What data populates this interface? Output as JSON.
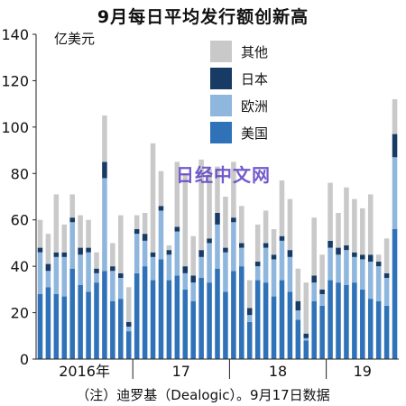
{
  "chart_data": {
    "type": "bar",
    "stacked": true,
    "title": "9月每日平均发行额创新高",
    "unit_label": "亿美元",
    "ylim": [
      0,
      140
    ],
    "yticks": [
      0,
      20,
      40,
      60,
      80,
      100,
      120,
      140
    ],
    "year_labels": [
      "2016年",
      "17",
      "18",
      "19"
    ],
    "grid": false,
    "legend_position": "top-right",
    "series": [
      {
        "name": "美国",
        "color": "#2f72b8",
        "values": [
          28,
          31,
          28,
          27,
          39,
          32,
          29,
          33,
          38,
          25,
          26,
          12,
          37,
          40,
          34,
          43,
          34,
          36,
          30,
          25,
          35,
          33,
          39,
          29,
          38,
          40,
          16,
          34,
          33,
          27,
          34,
          29,
          17,
          8,
          25,
          23,
          34,
          33,
          32,
          33,
          30,
          26,
          25,
          23,
          56
        ]
      },
      {
        "name": "欧洲",
        "color": "#8fb6dc",
        "values": [
          18,
          7,
          16,
          17,
          20,
          13,
          17,
          4,
          40,
          13,
          9,
          2,
          17,
          11,
          10,
          21,
          11,
          19,
          7,
          8,
          9,
          17,
          19,
          17,
          21,
          8,
          3,
          6,
          15,
          16,
          17,
          15,
          4,
          1,
          8,
          5,
          14,
          12,
          15,
          11,
          13,
          16,
          15,
          12,
          31
        ]
      },
      {
        "name": "日本",
        "color": "#183b66",
        "values": [
          2,
          3,
          2,
          2,
          2,
          3,
          2,
          2,
          7,
          2,
          2,
          2,
          2,
          3,
          2,
          2,
          2,
          2,
          3,
          3,
          3,
          2,
          5,
          2,
          2,
          2,
          3,
          2,
          2,
          2,
          2,
          3,
          4,
          2,
          3,
          2,
          3,
          3,
          2,
          2,
          2,
          3,
          2,
          2,
          10
        ]
      },
      {
        "name": "其他",
        "color": "#c9c9c9",
        "values": [
          12,
          13,
          25,
          12,
          10,
          14,
          12,
          7,
          20,
          10,
          25,
          15,
          6,
          9,
          47,
          15,
          2,
          28,
          40,
          17,
          39,
          30,
          20,
          22,
          24,
          16,
          12,
          16,
          14,
          11,
          24,
          22,
          14,
          22,
          25,
          15,
          25,
          15,
          25,
          23,
          20,
          26,
          3,
          15,
          15
        ]
      }
    ],
    "year_starts": [
      0,
      12,
      24,
      36
    ],
    "footnote": "（注）迪罗基（Dealogic）。9月17日数据"
  },
  "watermark": "日经中文网"
}
